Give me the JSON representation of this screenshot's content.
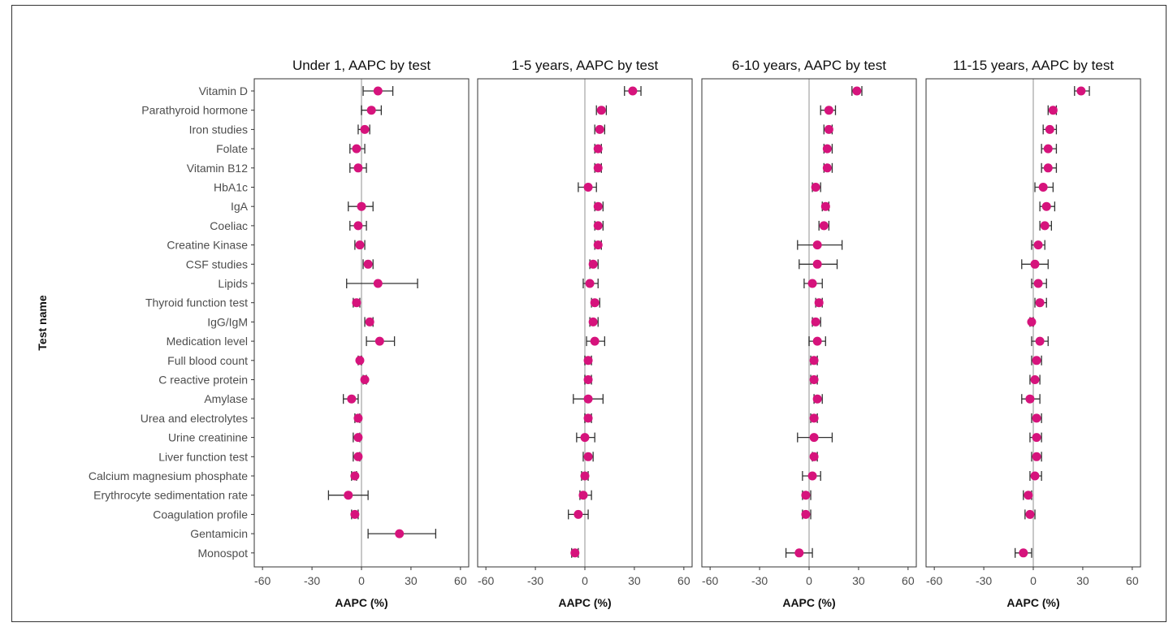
{
  "chart_data": {
    "type": "scatter",
    "ylabel": "Test name",
    "xlabel": "AAPC (%)",
    "xlim": [
      -65,
      65
    ],
    "xticks": [
      -60,
      -30,
      0,
      30,
      60
    ],
    "reference_line": 0,
    "grid": false,
    "colors": {
      "point": "#d6137c",
      "errorbar": "#333333",
      "zero_line": "#c8c8c8",
      "panel_border": "#333333"
    },
    "categories": [
      "Vitamin D",
      "Parathyroid hormone",
      "Iron studies",
      "Folate",
      "Vitamin B12",
      "HbA1c",
      "IgA",
      "Coeliac",
      "Creatine Kinase",
      "CSF studies",
      "Lipids",
      "Thyroid function test",
      "IgG/IgM",
      "Medication level",
      "Full blood count",
      "C reactive protein",
      "Amylase",
      "Urea and electrolytes",
      "Urine creatinine",
      "Liver function test",
      "Calcium magnesium phosphate",
      "Erythrocyte sedimentation rate",
      "Coagulation profile",
      "Gentamicin",
      "Monospot"
    ],
    "panels": [
      {
        "title": "Under 1, AAPC by test",
        "values": [
          10,
          6,
          2,
          -3,
          -2,
          null,
          0,
          -2,
          -1,
          4,
          10,
          -3,
          5,
          11,
          -1,
          2,
          -6,
          -2,
          -2,
          -2,
          -4,
          -8,
          -4,
          23,
          null
        ],
        "lower": [
          1,
          0,
          -2,
          -7,
          -7,
          null,
          -8,
          -7,
          -4,
          1,
          -9,
          -5,
          2,
          3,
          -2,
          1,
          -11,
          -4,
          -5,
          -5,
          -6,
          -20,
          -6,
          4,
          null
        ],
        "upper": [
          19,
          12,
          5,
          2,
          3,
          null,
          7,
          3,
          2,
          7,
          34,
          -1,
          7,
          20,
          0,
          3,
          -2,
          -1,
          -1,
          -1,
          -3,
          4,
          -2,
          45,
          null
        ]
      },
      {
        "title": "1-5 years, AAPC by test",
        "values": [
          29,
          10,
          9,
          8,
          8,
          2,
          8,
          8,
          8,
          5,
          3,
          6,
          5,
          6,
          2,
          2,
          2,
          2,
          0,
          2,
          0,
          -1,
          -4,
          null,
          -6
        ],
        "lower": [
          24,
          7,
          6,
          6,
          6,
          -4,
          6,
          6,
          6,
          3,
          -1,
          4,
          3,
          1,
          0,
          0,
          -7,
          0,
          -5,
          -1,
          -2,
          -3,
          -10,
          null,
          -8
        ],
        "upper": [
          34,
          13,
          12,
          10,
          10,
          7,
          11,
          11,
          10,
          8,
          8,
          9,
          8,
          12,
          4,
          4,
          11,
          4,
          6,
          5,
          2,
          4,
          2,
          null,
          -4
        ]
      },
      {
        "title": "6-10 years, AAPC by test",
        "values": [
          29,
          12,
          12,
          11,
          11,
          4,
          10,
          9,
          5,
          5,
          2,
          6,
          4,
          5,
          3,
          3,
          5,
          3,
          3,
          3,
          2,
          -2,
          -2,
          null,
          -6
        ],
        "lower": [
          26,
          7,
          9,
          9,
          9,
          2,
          8,
          6,
          -7,
          -6,
          -3,
          4,
          2,
          0,
          1,
          1,
          3,
          1,
          -7,
          2,
          -4,
          -4,
          -4,
          null,
          -14
        ],
        "upper": [
          32,
          16,
          14,
          14,
          14,
          7,
          12,
          12,
          20,
          17,
          8,
          8,
          7,
          10,
          5,
          5,
          8,
          5,
          14,
          5,
          7,
          1,
          1,
          null,
          2
        ]
      },
      {
        "title": "11-15 years, AAPC by test",
        "values": [
          29,
          12,
          10,
          9,
          9,
          6,
          8,
          7,
          3,
          1,
          3,
          4,
          -1,
          4,
          2,
          1,
          -2,
          2,
          2,
          2,
          1,
          -3,
          -2,
          null,
          -6
        ],
        "lower": [
          25,
          9,
          6,
          5,
          5,
          1,
          4,
          4,
          -1,
          -7,
          -1,
          1,
          -2,
          -1,
          -1,
          -2,
          -7,
          -1,
          -2,
          -1,
          -2,
          -6,
          -5,
          null,
          -11
        ],
        "upper": [
          34,
          14,
          14,
          14,
          14,
          12,
          13,
          11,
          7,
          9,
          8,
          8,
          0,
          9,
          5,
          4,
          4,
          5,
          5,
          5,
          5,
          -1,
          1,
          null,
          -1
        ]
      }
    ]
  }
}
